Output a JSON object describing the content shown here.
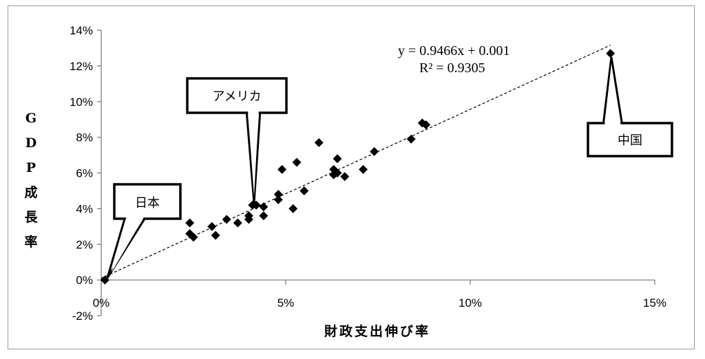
{
  "chart_data": {
    "type": "scatter",
    "xlabel": "財政支出伸び率",
    "ylabel": "GDP成長率",
    "xlim": [
      0,
      0.15
    ],
    "ylim": [
      -0.02,
      0.14
    ],
    "x_ticks": [
      0,
      0.05,
      0.1,
      0.15
    ],
    "x_tick_labels": [
      "0%",
      "5%",
      "10%",
      "15%"
    ],
    "y_ticks": [
      -0.02,
      0,
      0.02,
      0.04,
      0.06,
      0.08,
      0.1,
      0.12,
      0.14
    ],
    "y_tick_labels": [
      "-2%",
      "0%",
      "2%",
      "4%",
      "6%",
      "8%",
      "10%",
      "12%",
      "14%"
    ],
    "grid": false,
    "marker": "diamond",
    "marker_color": "#000000",
    "points": [
      {
        "x": 0.001,
        "y": 0.0
      },
      {
        "x": 0.024,
        "y": 0.032
      },
      {
        "x": 0.024,
        "y": 0.026
      },
      {
        "x": 0.025,
        "y": 0.024
      },
      {
        "x": 0.03,
        "y": 0.03
      },
      {
        "x": 0.031,
        "y": 0.025
      },
      {
        "x": 0.034,
        "y": 0.034
      },
      {
        "x": 0.037,
        "y": 0.032
      },
      {
        "x": 0.04,
        "y": 0.034
      },
      {
        "x": 0.04,
        "y": 0.036
      },
      {
        "x": 0.041,
        "y": 0.042
      },
      {
        "x": 0.042,
        "y": 0.042
      },
      {
        "x": 0.044,
        "y": 0.036
      },
      {
        "x": 0.044,
        "y": 0.041
      },
      {
        "x": 0.048,
        "y": 0.048
      },
      {
        "x": 0.048,
        "y": 0.045
      },
      {
        "x": 0.049,
        "y": 0.062
      },
      {
        "x": 0.052,
        "y": 0.04
      },
      {
        "x": 0.053,
        "y": 0.066
      },
      {
        "x": 0.055,
        "y": 0.05
      },
      {
        "x": 0.059,
        "y": 0.077
      },
      {
        "x": 0.063,
        "y": 0.062
      },
      {
        "x": 0.063,
        "y": 0.059
      },
      {
        "x": 0.064,
        "y": 0.068
      },
      {
        "x": 0.064,
        "y": 0.06
      },
      {
        "x": 0.066,
        "y": 0.058
      },
      {
        "x": 0.071,
        "y": 0.062
      },
      {
        "x": 0.074,
        "y": 0.072
      },
      {
        "x": 0.084,
        "y": 0.079
      },
      {
        "x": 0.087,
        "y": 0.088
      },
      {
        "x": 0.088,
        "y": 0.087
      },
      {
        "x": 0.138,
        "y": 0.127
      }
    ],
    "trendline": {
      "type": "linear",
      "slope": 0.9466,
      "intercept": 0.001,
      "x_range": [
        0,
        0.138
      ],
      "equation_text": "y = 0.9466x + 0.001",
      "r2_text": "R² = 0.9305",
      "style": "dashed"
    },
    "annotations": [
      {
        "text": "日本",
        "point": {
          "x": 0.001,
          "y": 0.0
        }
      },
      {
        "text": "アメリカ",
        "point": {
          "x": 0.041,
          "y": 0.042
        }
      },
      {
        "text": "中国",
        "point": {
          "x": 0.138,
          "y": 0.127
        }
      }
    ]
  }
}
